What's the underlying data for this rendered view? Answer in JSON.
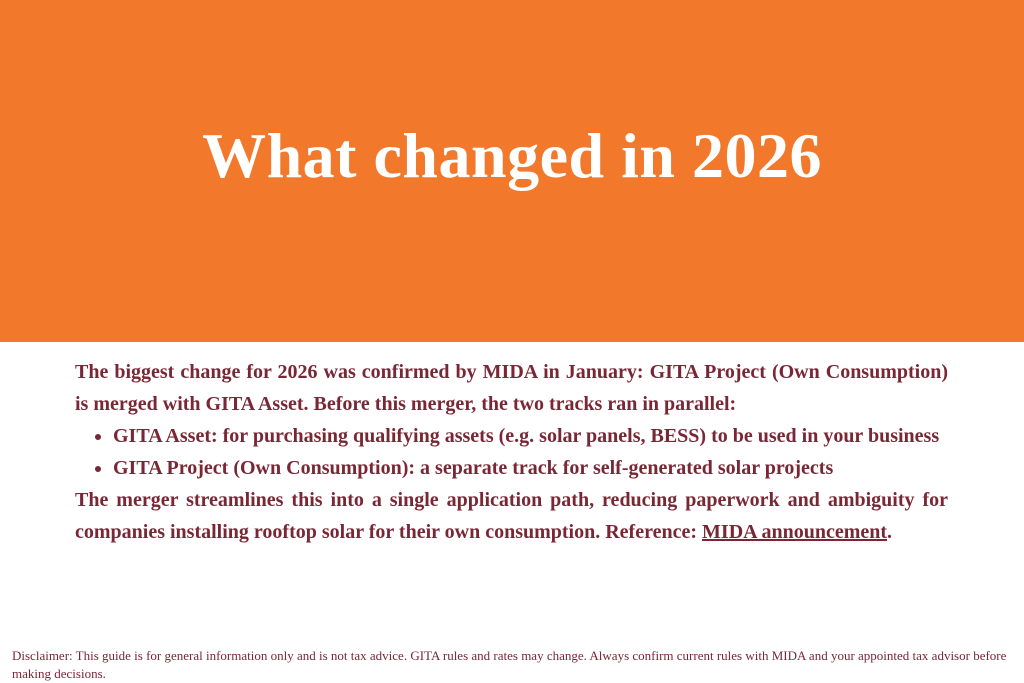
{
  "hero": {
    "title": "What changed in 2026",
    "background_color": "#F2792C",
    "text_color": "#FFFFFF"
  },
  "body": {
    "text_color": "#7A2735",
    "intro": "The biggest change for 2026 was confirmed by MIDA in January: GITA Project (Own Consumption) is merged with GITA Asset. Before this merger, the two tracks ran in parallel:",
    "bullets": [
      "GITA Asset: for purchasing qualifying assets (e.g. solar panels, BESS) to be used in your business",
      "GITA Project (Own Consumption): a separate track for self-generated solar projects"
    ],
    "conclusion": "The merger streamlines this into a single application path, reducing paperwork and ambiguity for companies installing rooftop solar for their own consumption. Reference: ",
    "reference_link": "MIDA announcement",
    "reference_end": "."
  },
  "disclaimer": "Disclaimer: This guide is for general information only and is not tax advice. GITA rules and rates may change. Always confirm current rules with MIDA and your appointed tax advisor before making decisions."
}
